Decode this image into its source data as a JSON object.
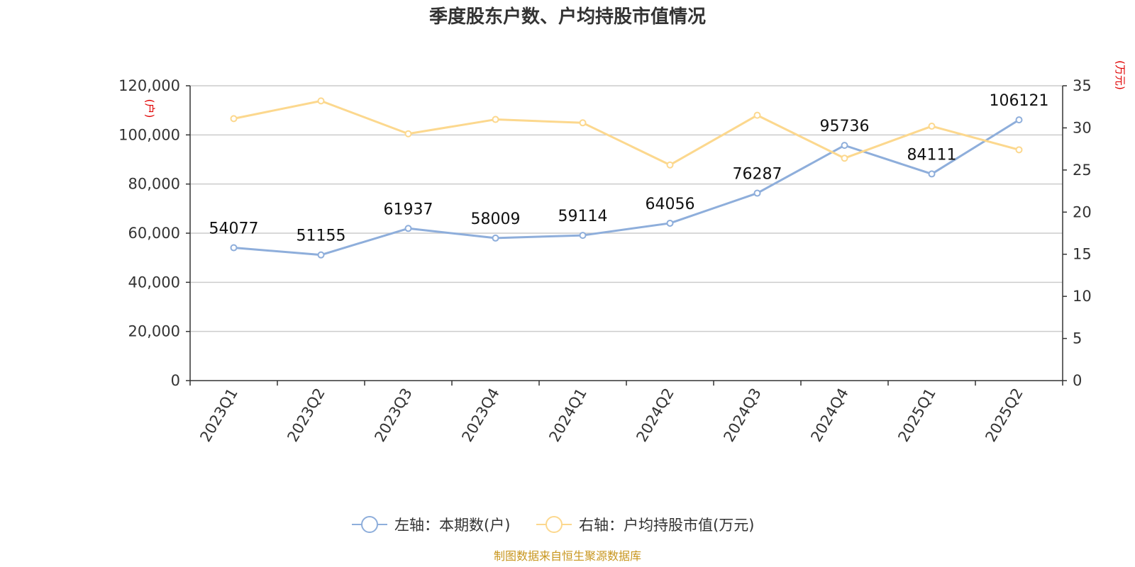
{
  "chart_data": {
    "type": "line",
    "title": "季度股东户数、户均持股市值情况",
    "categories": [
      "2023Q1",
      "2023Q2",
      "2023Q3",
      "2023Q4",
      "2024Q1",
      "2024Q2",
      "2024Q3",
      "2024Q4",
      "2025Q1",
      "2025Q2"
    ],
    "left_axis": {
      "unit": "(户)",
      "ylim": [
        0,
        120000
      ],
      "ticks": [
        "0",
        "20,000",
        "40,000",
        "60,000",
        "80,000",
        "100,000",
        "120,000"
      ],
      "tick_values": [
        0,
        20000,
        40000,
        60000,
        80000,
        100000,
        120000
      ]
    },
    "right_axis": {
      "unit": "(万元)",
      "ylim": [
        0,
        35
      ],
      "ticks": [
        "0",
        "5",
        "10",
        "15",
        "20",
        "25",
        "30",
        "35"
      ],
      "tick_values": [
        0,
        5,
        10,
        15,
        20,
        25,
        30,
        35
      ]
    },
    "series": [
      {
        "name": "左轴：本期数(户)",
        "axis": "left",
        "color": "#8eaedb",
        "values": [
          54077,
          51155,
          61937,
          58009,
          59114,
          64056,
          76287,
          95736,
          84111,
          106121
        ],
        "labels": [
          "54077",
          "51155",
          "61937",
          "58009",
          "59114",
          "64056",
          "76287",
          "95736",
          "84111",
          "106121"
        ]
      },
      {
        "name": "右轴：户均持股市值(万元)",
        "axis": "right",
        "color": "#fcd88e",
        "values": [
          31.1,
          33.2,
          29.3,
          31.0,
          30.6,
          25.6,
          31.5,
          26.4,
          30.2,
          27.4
        ]
      }
    ],
    "grid": true,
    "legend_position": "bottom-center",
    "source": "制图数据来自恒生聚源数据库"
  }
}
